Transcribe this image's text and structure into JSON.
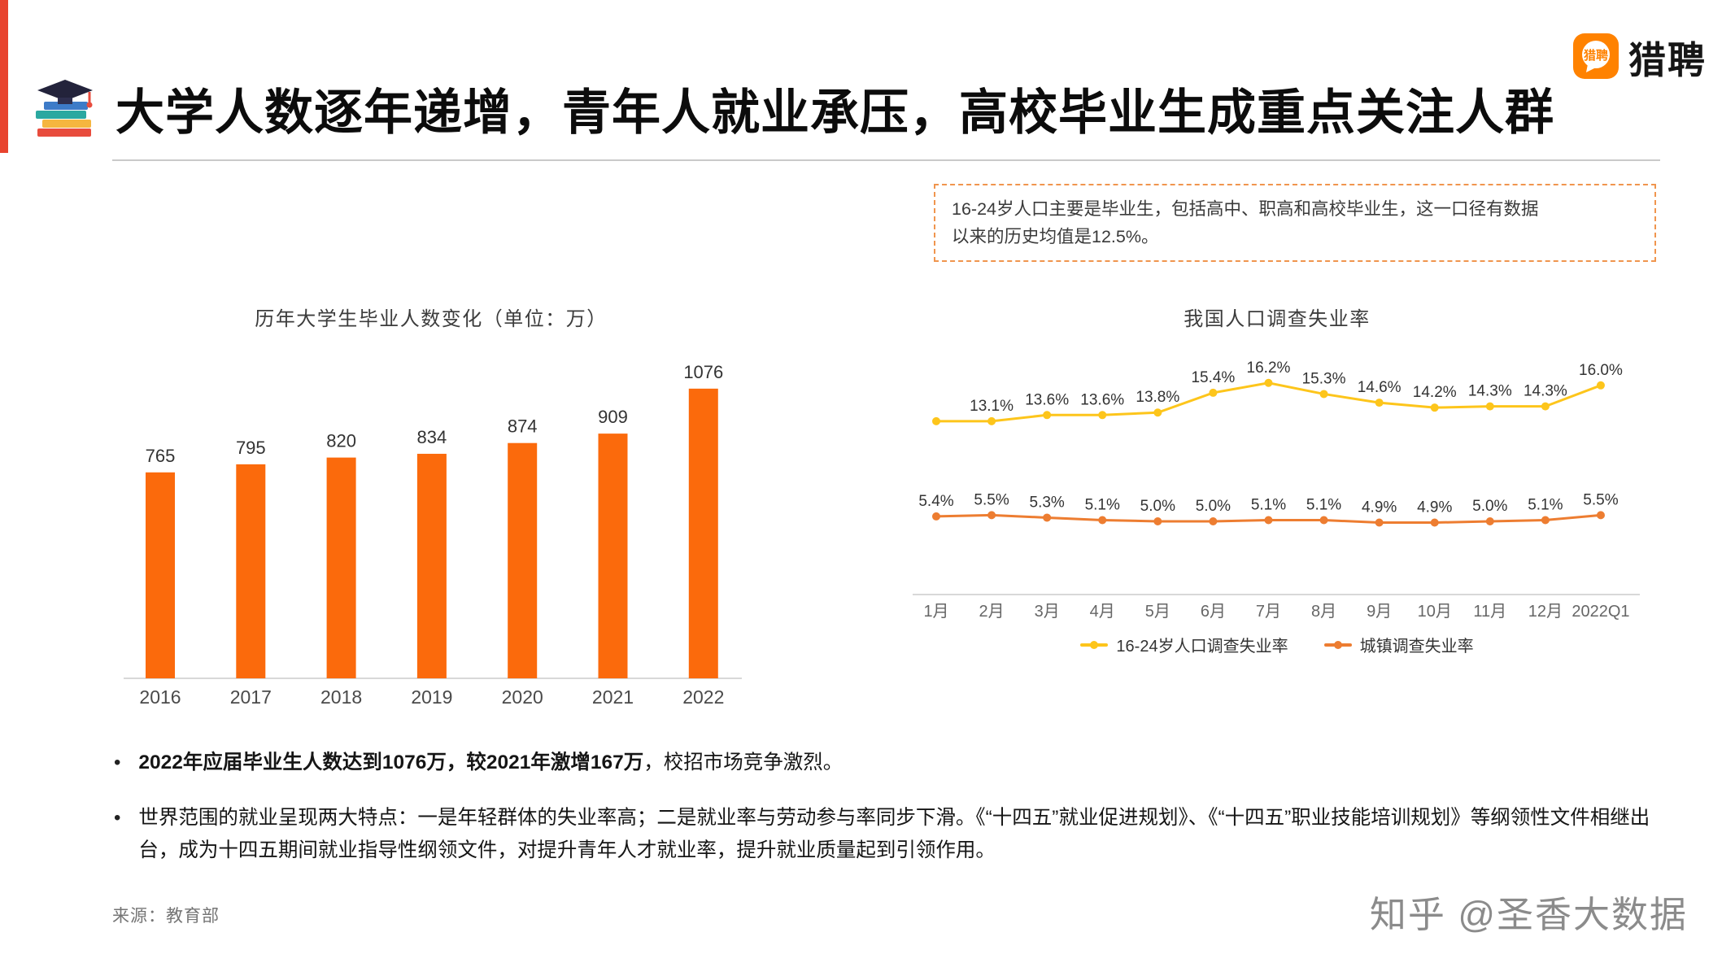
{
  "page": {
    "title": "大学人数逐年递增，青年人就业承压，高校毕业生成重点关注人群",
    "logo": {
      "badge_text": "猎聘",
      "wordmark": "猎聘"
    },
    "callout": {
      "line1": "16-24岁人口主要是毕业生，包括高中、职高和高校毕业生，这一口径有数据",
      "line2": "以来的历史均值是12.5%。"
    },
    "bullets": {
      "marker": "•",
      "b1_bold": "2022年应届毕业生人数达到1076万，较2021年激增167万",
      "b1_rest": "，校招市场竞争激烈。",
      "b2": "世界范围的就业呈现两大特点：一是年轻群体的失业率高；二是就业率与劳动参与率同步下滑。《“十四五”就业促进规划》、《“十四五”职业技能培训规划》等纲领性文件相继出台，成为十四五期间就业指导性纲领文件，对提升青年人才就业率，提升就业质量起到引领作用。"
    },
    "source": "来源：教育部",
    "watermark": "知乎 @圣香大数据",
    "colors": {
      "accent_red": "#E8432E",
      "liepin_orange": "#FF8200",
      "callout_border": "#F0954E"
    }
  },
  "chart_data": [
    {
      "type": "bar",
      "title": "历年大学生毕业人数变化（单位：万）",
      "categories": [
        "2016",
        "2017",
        "2018",
        "2019",
        "2020",
        "2021",
        "2022"
      ],
      "values": [
        765,
        795,
        820,
        834,
        874,
        909,
        1076
      ],
      "bar_color": "#FB6A0C",
      "ylim": [
        0,
        1150
      ],
      "grid": false,
      "legend_position": "none"
    },
    {
      "type": "line",
      "title": "我国人口调查失业率",
      "categories": [
        "1月",
        "2月",
        "3月",
        "4月",
        "5月",
        "6月",
        "7月",
        "8月",
        "9月",
        "10月",
        "11月",
        "12月",
        "2022Q1"
      ],
      "series": [
        {
          "name": "16-24岁人口调查失业率",
          "color": "#FDC51B",
          "values": [
            13.1,
            13.1,
            13.6,
            13.6,
            13.8,
            15.4,
            16.2,
            15.3,
            14.6,
            14.2,
            14.3,
            14.3,
            16.0
          ],
          "labels": [
            "",
            "13.1%",
            "13.6%",
            "13.6%",
            "13.8%",
            "15.4%",
            "16.2%",
            "15.3%",
            "14.6%",
            "14.2%",
            "14.3%",
            "14.3%",
            "16.0%"
          ]
        },
        {
          "name": "城镇调查失业率",
          "color": "#ED7D31",
          "values": [
            5.4,
            5.5,
            5.3,
            5.1,
            5.0,
            5.0,
            5.1,
            5.1,
            4.9,
            4.9,
            5.0,
            5.1,
            5.5
          ],
          "labels": [
            "5.4%",
            "5.5%",
            "5.3%",
            "5.1%",
            "5.0%",
            "5.0%",
            "5.1%",
            "5.1%",
            "4.9%",
            "4.9%",
            "5.0%",
            "5.1%",
            "5.5%"
          ]
        }
      ],
      "ylim": [
        0,
        20
      ],
      "grid": false,
      "legend_position": "bottom"
    }
  ]
}
